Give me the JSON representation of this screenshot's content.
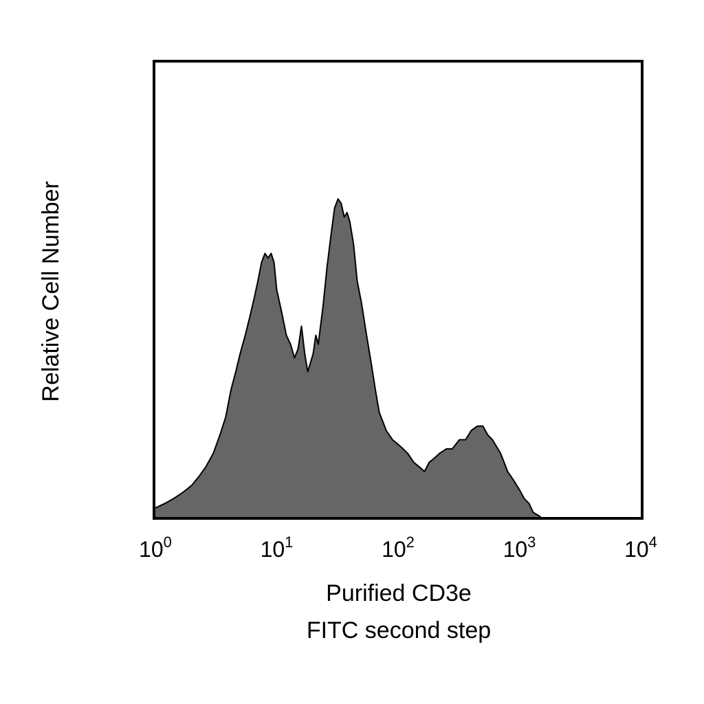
{
  "chart_data": {
    "type": "area",
    "xlabel": [
      "Purified CD3e",
      "FITC second step"
    ],
    "ylabel": "Relative Cell Number",
    "x_scale": "log",
    "xlim": [
      1,
      10000
    ],
    "ylim": [
      0,
      100
    ],
    "grid": false,
    "x_ticks": [
      {
        "base": "10",
        "exp": "0",
        "value": 1
      },
      {
        "base": "10",
        "exp": "1",
        "value": 10
      },
      {
        "base": "10",
        "exp": "2",
        "value": 100
      },
      {
        "base": "10",
        "exp": "3",
        "value": 1000
      },
      {
        "base": "10",
        "exp": "4",
        "value": 10000
      }
    ],
    "fill_color": "#666666",
    "line_color": "#000000",
    "series": [
      {
        "x": [
          1,
          1.2,
          1.4,
          1.6,
          1.8,
          2.0,
          2.3,
          2.6,
          3.0,
          3.4,
          3.8,
          4.2,
          4.6,
          5.0,
          5.5,
          6.0,
          6.5,
          7.0,
          7.5,
          8.0,
          8.5,
          9.0,
          9.5,
          10.0,
          11.0,
          12.0,
          13.0,
          14.0,
          15.0,
          16.0,
          17.0,
          18.0,
          19.0,
          20.0,
          21.0,
          22.0,
          24.0,
          26.0,
          28.0,
          30.0,
          32.0,
          34.0,
          36.0,
          38.0,
          40.0,
          43.0,
          46.0,
          50.0,
          55.0,
          60.0,
          65.0,
          70.0,
          80.0,
          90.0,
          100.0,
          110.0,
          120.0,
          135.0,
          150.0,
          165.0,
          180.0,
          200.0,
          220.0,
          250.0,
          280.0,
          320.0,
          360.0,
          400.0,
          450.0,
          500.0,
          550.0,
          600.0,
          700.0,
          800.0,
          900.0,
          1000.0,
          1100.0,
          1200.0,
          1300.0,
          1400.0,
          1500.0
        ],
        "values": [
          2,
          3,
          4,
          5,
          6,
          7,
          9,
          11,
          14,
          18,
          22,
          28,
          32,
          36,
          40,
          44,
          48,
          52,
          56,
          58,
          57,
          58,
          56,
          50,
          45,
          40,
          38,
          35,
          37,
          42,
          36,
          32,
          34,
          36,
          40,
          38,
          46,
          55,
          62,
          68,
          70,
          69,
          66,
          67,
          65,
          60,
          52,
          47,
          40,
          34,
          28,
          23,
          19,
          17,
          16,
          15,
          14,
          12,
          11,
          10,
          12,
          13,
          14,
          15,
          15,
          17,
          17,
          19,
          20,
          20,
          18,
          17,
          14,
          10,
          8,
          6,
          4,
          3,
          1,
          0.5,
          0
        ]
      }
    ]
  }
}
